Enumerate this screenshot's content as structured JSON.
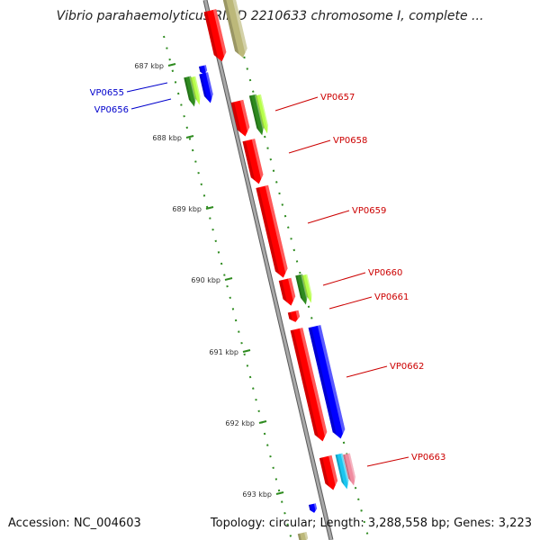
{
  "title": "Vibrio parahaemolyticus RIMD 2210633 chromosome I, complete ...",
  "footer": {
    "accession": "Accession: NC_004603",
    "topology": "Topology: circular; Length: 3,288,558 bp; Genes: 3,223"
  },
  "colors": {
    "plus_strand_label": "#cc0000",
    "minus_strand_label": "#0000cc",
    "gene_red": "#ff0000",
    "gene_blue": "#0000ff",
    "gene_olive": "#bcb87a",
    "gene_green": "#2e8b1f",
    "gene_lightgreen": "#b7ff4a",
    "gene_cyan": "#19c6f0",
    "gene_pink": "#f08ca0",
    "backbone": "#909090",
    "tick": "#2e8b1f"
  },
  "kbp_ticks": [
    {
      "label": "687 kbp"
    },
    {
      "label": "688 kbp"
    },
    {
      "label": "689 kbp"
    },
    {
      "label": "690 kbp"
    },
    {
      "label": "691 kbp"
    },
    {
      "label": "692 kbp"
    },
    {
      "label": "693 kbp"
    }
  ],
  "gene_labels": [
    {
      "id": "VP0655",
      "strand": "minus"
    },
    {
      "id": "VP0656",
      "strand": "minus"
    },
    {
      "id": "VP0657",
      "strand": "plus"
    },
    {
      "id": "VP0658",
      "strand": "plus"
    },
    {
      "id": "VP0659",
      "strand": "plus"
    },
    {
      "id": "VP0660",
      "strand": "plus"
    },
    {
      "id": "VP0661",
      "strand": "plus"
    },
    {
      "id": "VP0662",
      "strand": "plus"
    },
    {
      "id": "VP0663",
      "strand": "plus"
    }
  ]
}
